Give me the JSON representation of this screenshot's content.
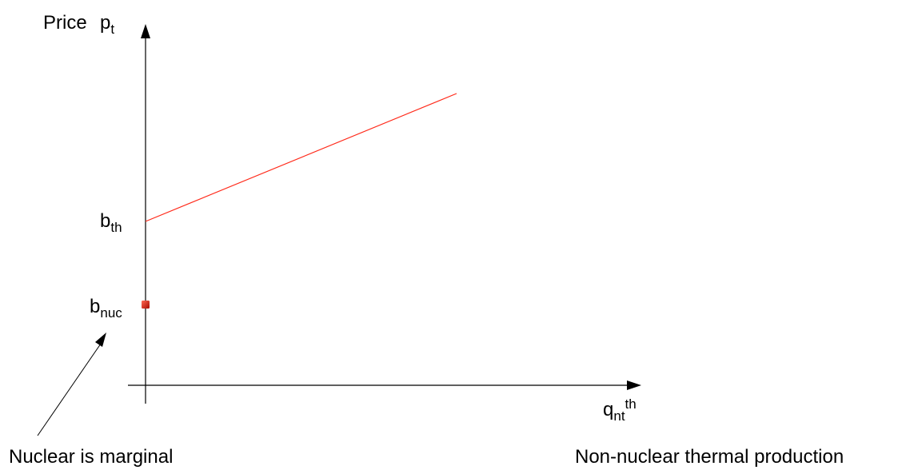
{
  "labels": {
    "price": "Price",
    "y_axis": {
      "base": "p",
      "sub": "t"
    },
    "b_th": {
      "base": "b",
      "sub": "th"
    },
    "b_nuc": {
      "base": "b",
      "sub": "nuc"
    },
    "x_axis": {
      "base": "q",
      "sub": "nt",
      "sup": "th"
    },
    "nuclear_marginal": "Nuclear is marginal",
    "x_description": "Non-nuclear thermal production"
  },
  "colors": {
    "axis": "#000000",
    "supply_line": "#ff2a1a",
    "nuc_point": "#cc1100"
  },
  "icons": {
    "nuc_point": "red-square-marker"
  }
}
